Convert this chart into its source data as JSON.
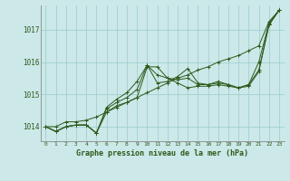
{
  "title": "Graphe pression niveau de la mer (hPa)",
  "background_color": "#cce8e8",
  "plot_bg_color": "#cce8e8",
  "grid_color": "#99cccc",
  "line_color": "#2d5a1b",
  "xlim": [
    -0.5,
    23.5
  ],
  "ylim": [
    1013.55,
    1017.75
  ],
  "yticks": [
    1014,
    1015,
    1016,
    1017
  ],
  "xticks": [
    0,
    1,
    2,
    3,
    4,
    5,
    6,
    7,
    8,
    9,
    10,
    11,
    12,
    13,
    14,
    15,
    16,
    17,
    18,
    19,
    20,
    21,
    22,
    23
  ],
  "series": [
    [
      1014.0,
      1013.85,
      1014.0,
      1014.05,
      1014.05,
      1013.8,
      1014.45,
      1014.65,
      1014.75,
      1014.9,
      1015.85,
      1015.85,
      1015.5,
      1015.35,
      1015.2,
      1015.25,
      1015.25,
      1015.3,
      1015.25,
      1015.2,
      1015.25,
      1015.7,
      1017.15,
      1017.6
    ],
    [
      1014.0,
      1013.85,
      1014.0,
      1014.05,
      1014.05,
      1013.8,
      1014.55,
      1014.75,
      1014.9,
      1015.15,
      1015.9,
      1015.6,
      1015.5,
      1015.45,
      1015.5,
      1015.3,
      1015.3,
      1015.35,
      1015.3,
      1015.2,
      1015.3,
      1016.0,
      1017.2,
      1017.6
    ],
    [
      1014.0,
      1013.85,
      1014.0,
      1014.05,
      1014.05,
      1013.8,
      1014.6,
      1014.85,
      1015.05,
      1015.4,
      1015.9,
      1015.35,
      1015.4,
      1015.55,
      1015.8,
      1015.35,
      1015.3,
      1015.4,
      1015.3,
      1015.2,
      1015.3,
      1015.75,
      1017.15,
      1017.6
    ],
    [
      1014.0,
      1014.0,
      1014.15,
      1014.15,
      1014.2,
      1014.3,
      1014.45,
      1014.6,
      1014.75,
      1014.9,
      1015.05,
      1015.2,
      1015.35,
      1015.5,
      1015.6,
      1015.75,
      1015.85,
      1016.0,
      1016.1,
      1016.2,
      1016.35,
      1016.5,
      1017.25,
      1017.6
    ]
  ]
}
